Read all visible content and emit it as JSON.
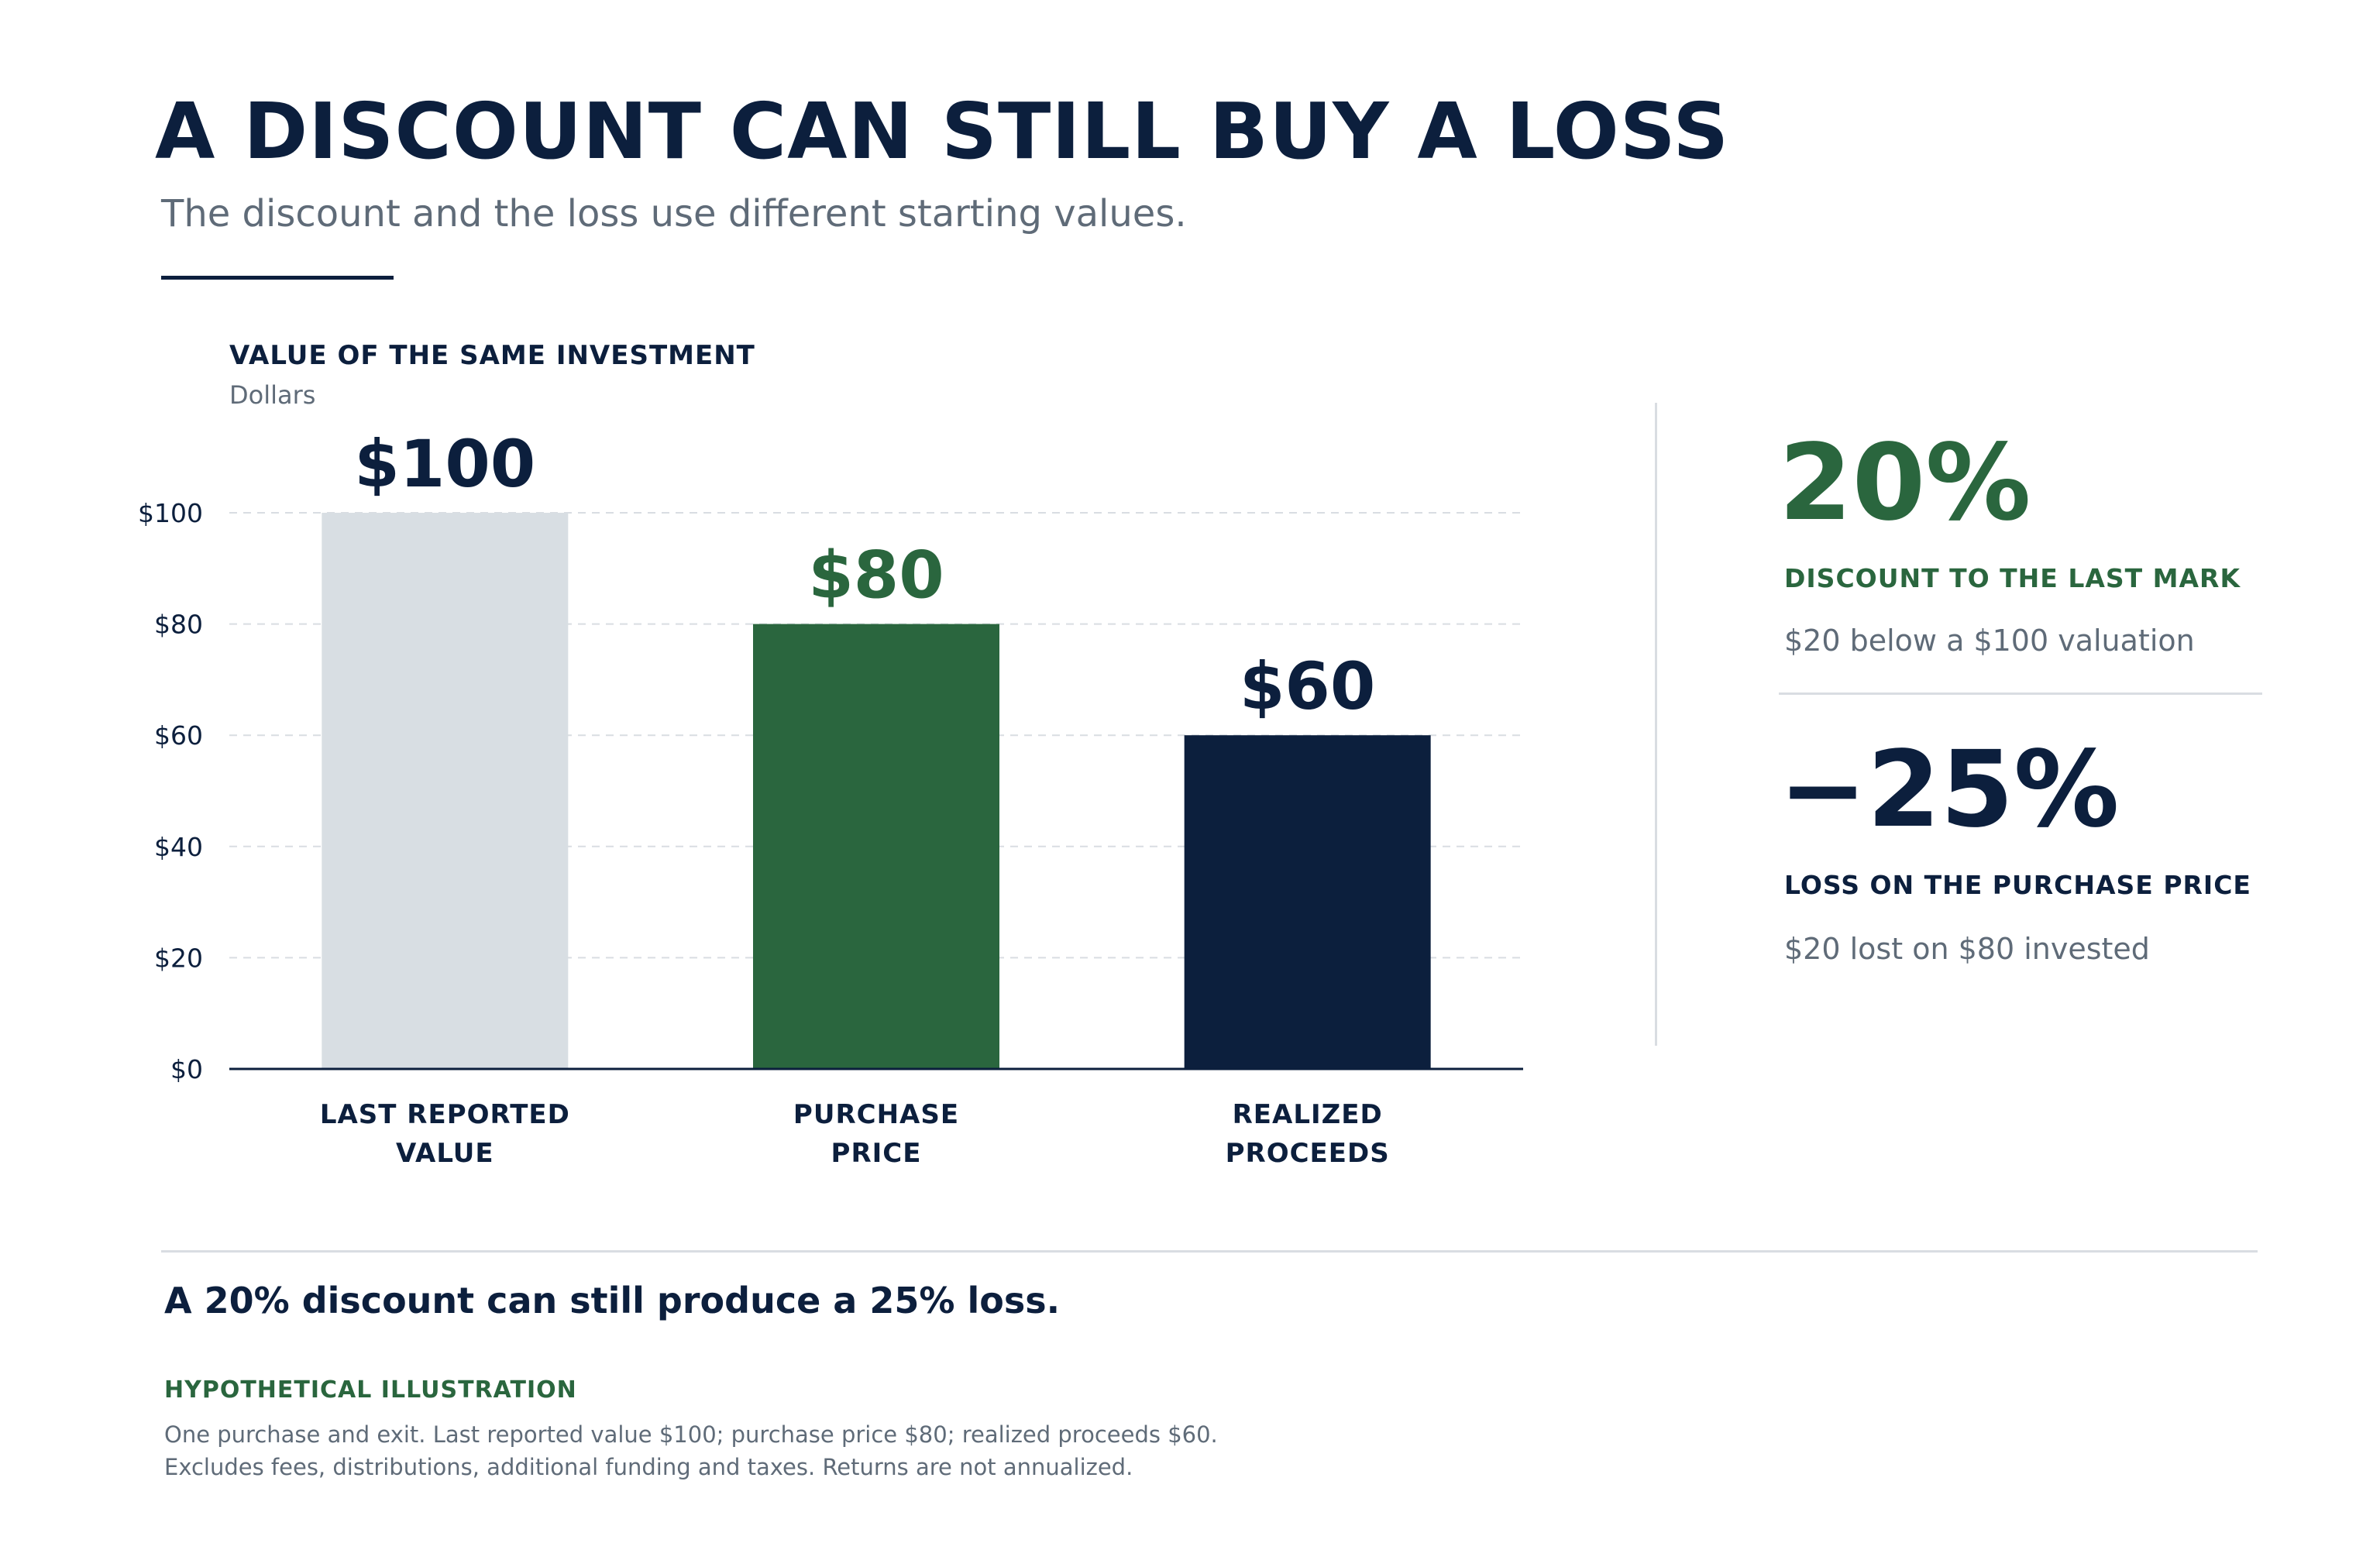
{
  "header": {
    "title": "A DISCOUNT CAN STILL BUY A LOSS",
    "subtitle": "The discount and the loss use different starting values."
  },
  "chart_data": {
    "type": "bar",
    "title": "VALUE OF THE SAME INVESTMENT",
    "ylabel": "Dollars",
    "categories": [
      [
        "LAST REPORTED",
        "VALUE"
      ],
      [
        "PURCHASE",
        "PRICE"
      ],
      [
        "REALIZED",
        "PROCEEDS"
      ]
    ],
    "values": [
      100,
      80,
      60
    ],
    "value_labels": [
      "$100",
      "$80",
      "$60"
    ],
    "bar_colors": [
      "#d8dee3",
      "#2a663e",
      "#0c1f3d"
    ],
    "value_label_colors": [
      "#0c1f3d",
      "#2a663e",
      "#0c1f3d"
    ],
    "ylim": [
      0,
      100
    ],
    "yticks": [
      0,
      20,
      40,
      60,
      80,
      100
    ],
    "ytick_labels": [
      "$0",
      "$20",
      "$40",
      "$60",
      "$80",
      "$100"
    ],
    "grid": true,
    "legend": "none"
  },
  "stats": [
    {
      "value": "20%",
      "label": "DISCOUNT TO THE LAST MARK",
      "note": "$20 below a $100 valuation",
      "color": "#2a663e"
    },
    {
      "value": "−25%",
      "label": "LOSS ON THE PURCHASE PRICE",
      "note": "$20 lost on $80 invested",
      "color": "#0c1f3d"
    }
  ],
  "footer": {
    "takeaway": "A 20% discount can still produce a 25% loss.",
    "label": "HYPOTHETICAL ILLUSTRATION",
    "lines": [
      "One purchase and exit. Last reported value $100; purchase price $80; realized proceeds $60.",
      "Excludes fees, distributions, additional funding and taxes. Returns are not annualized."
    ]
  },
  "colors": {
    "navy": "#0c1f3d",
    "green": "#2a663e",
    "gray_bar": "#d8dee3",
    "muted_text": "#5f6b78",
    "rule": "#d9dde2"
  }
}
